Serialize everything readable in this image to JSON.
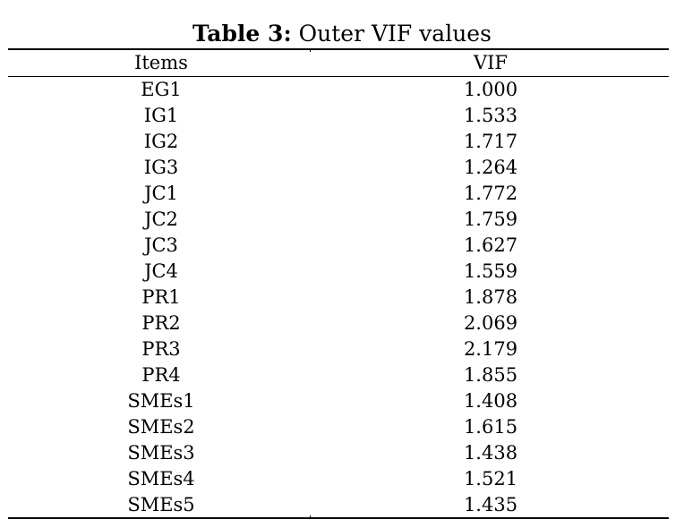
{
  "caption": {
    "label": "Table 3:",
    "text": "Outer VIF values"
  },
  "table": {
    "headers": {
      "items": "Items",
      "vif": "VIF"
    },
    "rows": [
      {
        "item": "EG1",
        "vif": "1.000"
      },
      {
        "item": "IG1",
        "vif": "1.533"
      },
      {
        "item": "IG2",
        "vif": "1.717"
      },
      {
        "item": "IG3",
        "vif": "1.264"
      },
      {
        "item": "JC1",
        "vif": "1.772"
      },
      {
        "item": "JC2",
        "vif": "1.759"
      },
      {
        "item": "JC3",
        "vif": "1.627"
      },
      {
        "item": "JC4",
        "vif": "1.559"
      },
      {
        "item": "PR1",
        "vif": "1.878"
      },
      {
        "item": "PR2",
        "vif": "2.069"
      },
      {
        "item": "PR3",
        "vif": "2.179"
      },
      {
        "item": "PR4",
        "vif": "1.855"
      },
      {
        "item": "SMEs1",
        "vif": "1.408"
      },
      {
        "item": "SMEs2",
        "vif": "1.615"
      },
      {
        "item": "SMEs3",
        "vif": "1.438"
      },
      {
        "item": "SMEs4",
        "vif": "1.521"
      },
      {
        "item": "SMEs5",
        "vif": "1.435"
      }
    ]
  }
}
